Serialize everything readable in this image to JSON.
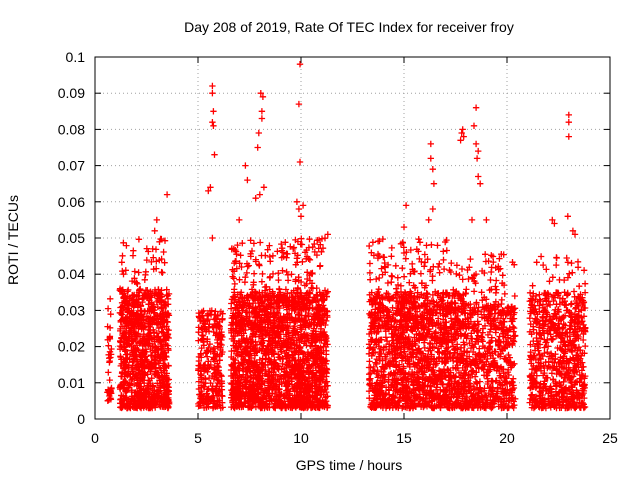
{
  "chart_data": {
    "type": "scatter",
    "title": "Day 208 of 2019, Rate Of TEC Index for receiver froy",
    "xlabel": "GPS time / hours",
    "ylabel": "ROTI / TECUs",
    "xlim": [
      0,
      25
    ],
    "ylim": [
      0,
      0.1
    ],
    "xticks": [
      0,
      5,
      10,
      15,
      20,
      25
    ],
    "yticks": [
      0,
      0.01,
      0.02,
      0.03,
      0.04,
      0.05,
      0.06,
      0.07,
      0.08,
      0.09,
      0.1
    ],
    "grid": true,
    "marker": "plus",
    "marker_color": "#ff0000",
    "clusters": [
      {
        "x_range": [
          0.6,
          0.8
        ],
        "y_range": [
          0.005,
          0.034
        ],
        "count": 40
      },
      {
        "x_range": [
          1.2,
          3.6
        ],
        "y_range": [
          0.003,
          0.036
        ],
        "count": 900
      },
      {
        "x_range": [
          1.3,
          3.5
        ],
        "y_range": [
          0.025,
          0.05
        ],
        "count": 90
      },
      {
        "x_range": [
          5.0,
          6.2
        ],
        "y_range": [
          0.003,
          0.03
        ],
        "count": 280
      },
      {
        "x_range": [
          6.6,
          11.3
        ],
        "y_range": [
          0.003,
          0.035
        ],
        "count": 1700
      },
      {
        "x_range": [
          6.6,
          11.3
        ],
        "y_range": [
          0.025,
          0.05
        ],
        "count": 260
      },
      {
        "x_range": [
          13.3,
          18.0
        ],
        "y_range": [
          0.003,
          0.035
        ],
        "count": 1400
      },
      {
        "x_range": [
          13.3,
          18.0
        ],
        "y_range": [
          0.025,
          0.05
        ],
        "count": 220
      },
      {
        "x_range": [
          18.0,
          20.4
        ],
        "y_range": [
          0.003,
          0.032
        ],
        "count": 500
      },
      {
        "x_range": [
          18.0,
          20.4
        ],
        "y_range": [
          0.025,
          0.046
        ],
        "count": 90
      },
      {
        "x_range": [
          21.1,
          23.8
        ],
        "y_range": [
          0.003,
          0.035
        ],
        "count": 650
      },
      {
        "x_range": [
          21.1,
          23.8
        ],
        "y_range": [
          0.025,
          0.045
        ],
        "count": 70
      }
    ],
    "highlights": [
      {
        "x": 3.5,
        "y": 0.062
      },
      {
        "x": 3.0,
        "y": 0.055
      },
      {
        "x": 2.9,
        "y": 0.052
      },
      {
        "x": 5.7,
        "y": 0.092
      },
      {
        "x": 5.7,
        "y": 0.09
      },
      {
        "x": 5.75,
        "y": 0.085
      },
      {
        "x": 5.7,
        "y": 0.082
      },
      {
        "x": 5.75,
        "y": 0.081
      },
      {
        "x": 5.8,
        "y": 0.073
      },
      {
        "x": 5.5,
        "y": 0.063
      },
      {
        "x": 5.6,
        "y": 0.064
      },
      {
        "x": 5.7,
        "y": 0.05
      },
      {
        "x": 7.0,
        "y": 0.055
      },
      {
        "x": 7.3,
        "y": 0.07
      },
      {
        "x": 7.4,
        "y": 0.066
      },
      {
        "x": 7.8,
        "y": 0.061
      },
      {
        "x": 7.9,
        "y": 0.075
      },
      {
        "x": 7.95,
        "y": 0.079
      },
      {
        "x": 8.1,
        "y": 0.083
      },
      {
        "x": 8.05,
        "y": 0.09
      },
      {
        "x": 8.15,
        "y": 0.089
      },
      {
        "x": 8.1,
        "y": 0.085
      },
      {
        "x": 8.0,
        "y": 0.062
      },
      {
        "x": 8.2,
        "y": 0.064
      },
      {
        "x": 9.8,
        "y": 0.06
      },
      {
        "x": 9.9,
        "y": 0.058
      },
      {
        "x": 10.0,
        "y": 0.056
      },
      {
        "x": 10.1,
        "y": 0.059
      },
      {
        "x": 9.95,
        "y": 0.098
      },
      {
        "x": 9.9,
        "y": 0.087
      },
      {
        "x": 9.95,
        "y": 0.071
      },
      {
        "x": 11.3,
        "y": 0.051
      },
      {
        "x": 16.3,
        "y": 0.076
      },
      {
        "x": 16.3,
        "y": 0.072
      },
      {
        "x": 16.4,
        "y": 0.069
      },
      {
        "x": 16.45,
        "y": 0.065
      },
      {
        "x": 16.4,
        "y": 0.058
      },
      {
        "x": 16.2,
        "y": 0.055
      },
      {
        "x": 15.1,
        "y": 0.059
      },
      {
        "x": 15.0,
        "y": 0.053
      },
      {
        "x": 17.8,
        "y": 0.079
      },
      {
        "x": 17.9,
        "y": 0.078
      },
      {
        "x": 17.75,
        "y": 0.077
      },
      {
        "x": 17.85,
        "y": 0.08
      },
      {
        "x": 18.5,
        "y": 0.086
      },
      {
        "x": 18.5,
        "y": 0.076
      },
      {
        "x": 18.6,
        "y": 0.074
      },
      {
        "x": 18.55,
        "y": 0.072
      },
      {
        "x": 18.6,
        "y": 0.067
      },
      {
        "x": 18.7,
        "y": 0.065
      },
      {
        "x": 18.4,
        "y": 0.081
      },
      {
        "x": 18.3,
        "y": 0.055
      },
      {
        "x": 19.0,
        "y": 0.055
      },
      {
        "x": 22.2,
        "y": 0.055
      },
      {
        "x": 22.3,
        "y": 0.054
      },
      {
        "x": 23.0,
        "y": 0.084
      },
      {
        "x": 23.0,
        "y": 0.082
      },
      {
        "x": 23.0,
        "y": 0.078
      },
      {
        "x": 22.95,
        "y": 0.056
      },
      {
        "x": 23.2,
        "y": 0.052
      },
      {
        "x": 23.3,
        "y": 0.051
      }
    ]
  }
}
